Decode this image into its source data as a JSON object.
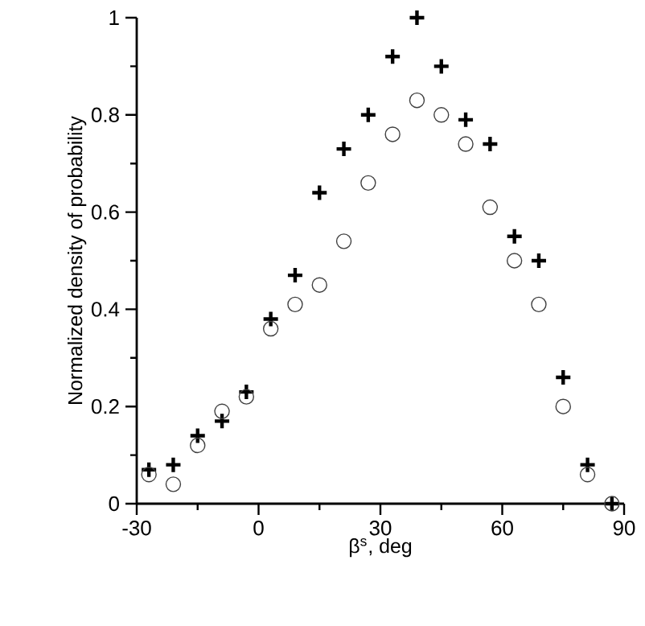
{
  "chart_data": {
    "type": "scatter",
    "xlabel": "β$^{s}$, deg",
    "ylabel": "Normalized density of probability",
    "xlim": [
      -30,
      90
    ],
    "xticks": [
      -30,
      0,
      30,
      60,
      90
    ],
    "ylim": [
      0,
      1
    ],
    "yticks": [
      0,
      0.2,
      0.4,
      0.6,
      0.8,
      1
    ],
    "x": [
      -27,
      -21,
      -15,
      -9,
      -3,
      3,
      9,
      15,
      21,
      27,
      33,
      39,
      45,
      51,
      57,
      63,
      69,
      75,
      81,
      87
    ],
    "series": [
      {
        "color": "#000000",
        "marker": "cross",
        "values": [
          0.07,
          0.08,
          0.14,
          0.17,
          0.23,
          0.38,
          0.47,
          0.64,
          0.73,
          0.8,
          0.92,
          1.0,
          0.9,
          0.79,
          0.74,
          0.55,
          0.5,
          0.26,
          0.08,
          0.0
        ]
      },
      {
        "color": "#404040",
        "marker": "circle",
        "values": [
          0.06,
          0.04,
          0.12,
          0.19,
          0.22,
          0.36,
          0.41,
          0.45,
          0.54,
          0.66,
          0.76,
          0.83,
          0.8,
          0.74,
          0.61,
          0.5,
          0.41,
          0.2,
          0.06,
          0.0
        ]
      }
    ]
  }
}
